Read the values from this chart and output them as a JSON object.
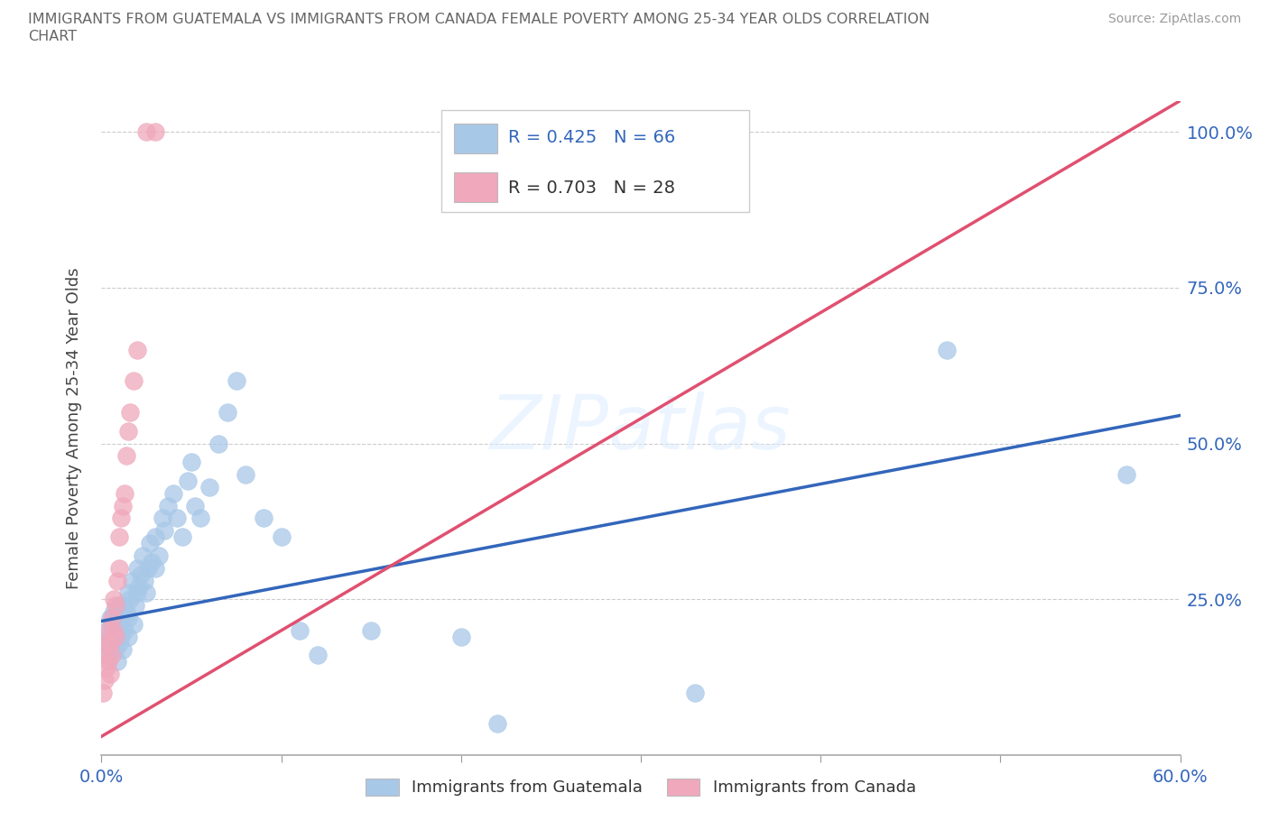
{
  "title_line1": "IMMIGRANTS FROM GUATEMALA VS IMMIGRANTS FROM CANADA FEMALE POVERTY AMONG 25-34 YEAR OLDS CORRELATION",
  "title_line2": "CHART",
  "source": "Source: ZipAtlas.com",
  "ylabel": "Female Poverty Among 25-34 Year Olds",
  "xlim": [
    0.0,
    0.6
  ],
  "ylim": [
    0.0,
    1.05
  ],
  "R_guatemala": 0.425,
  "N_guatemala": 66,
  "R_canada": 0.703,
  "N_canada": 28,
  "color_guatemala": "#a8c8e8",
  "color_canada": "#f0a8bc",
  "line_color_guatemala": "#3366bb",
  "line_color_canada": "#e05070",
  "background_color": "#ffffff",
  "guat_line_x0": 0.0,
  "guat_line_y0": 0.215,
  "guat_line_x1": 0.6,
  "guat_line_y1": 0.545,
  "can_line_x0": 0.0,
  "can_line_y0": 0.03,
  "can_line_x1": 0.6,
  "can_line_y1": 1.05,
  "guatemala_x": [
    0.002,
    0.003,
    0.004,
    0.005,
    0.005,
    0.006,
    0.007,
    0.007,
    0.008,
    0.008,
    0.009,
    0.009,
    0.01,
    0.01,
    0.01,
    0.011,
    0.012,
    0.012,
    0.013,
    0.013,
    0.014,
    0.015,
    0.015,
    0.015,
    0.016,
    0.017,
    0.018,
    0.019,
    0.02,
    0.02,
    0.021,
    0.022,
    0.023,
    0.024,
    0.025,
    0.026,
    0.027,
    0.028,
    0.03,
    0.03,
    0.032,
    0.034,
    0.035,
    0.037,
    0.04,
    0.042,
    0.045,
    0.048,
    0.05,
    0.052,
    0.055,
    0.06,
    0.065,
    0.07,
    0.075,
    0.08,
    0.09,
    0.1,
    0.11,
    0.12,
    0.15,
    0.2,
    0.22,
    0.33,
    0.47,
    0.57
  ],
  "guatemala_y": [
    0.18,
    0.2,
    0.16,
    0.22,
    0.19,
    0.21,
    0.18,
    0.23,
    0.2,
    0.17,
    0.15,
    0.22,
    0.18,
    0.21,
    0.24,
    0.19,
    0.22,
    0.17,
    0.2,
    0.24,
    0.23,
    0.19,
    0.22,
    0.26,
    0.25,
    0.28,
    0.21,
    0.24,
    0.26,
    0.3,
    0.27,
    0.29,
    0.32,
    0.28,
    0.26,
    0.3,
    0.34,
    0.31,
    0.3,
    0.35,
    0.32,
    0.38,
    0.36,
    0.4,
    0.42,
    0.38,
    0.35,
    0.44,
    0.47,
    0.4,
    0.38,
    0.43,
    0.5,
    0.55,
    0.6,
    0.45,
    0.38,
    0.35,
    0.2,
    0.16,
    0.2,
    0.19,
    0.05,
    0.1,
    0.65,
    0.45
  ],
  "canada_x": [
    0.001,
    0.002,
    0.002,
    0.003,
    0.003,
    0.004,
    0.004,
    0.005,
    0.005,
    0.006,
    0.006,
    0.007,
    0.007,
    0.008,
    0.008,
    0.009,
    0.01,
    0.01,
    0.011,
    0.012,
    0.013,
    0.014,
    0.015,
    0.016,
    0.018,
    0.02,
    0.025,
    0.03
  ],
  "canada_y": [
    0.1,
    0.12,
    0.16,
    0.14,
    0.18,
    0.15,
    0.2,
    0.13,
    0.18,
    0.16,
    0.22,
    0.2,
    0.25,
    0.19,
    0.24,
    0.28,
    0.3,
    0.35,
    0.38,
    0.4,
    0.42,
    0.48,
    0.52,
    0.55,
    0.6,
    0.65,
    1.0,
    1.0
  ]
}
